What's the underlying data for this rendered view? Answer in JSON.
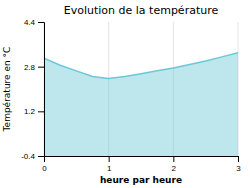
{
  "chart_data": {
    "type": "area",
    "title": "Evolution de la température",
    "xlabel": "heure par heure",
    "ylabel": "Température en °C",
    "x": [
      0,
      0.25,
      0.5,
      0.75,
      1.0,
      1.25,
      1.5,
      1.75,
      2.0,
      2.25,
      2.5,
      2.75,
      3.0
    ],
    "values": [
      3.1,
      2.85,
      2.65,
      2.45,
      2.38,
      2.45,
      2.55,
      2.65,
      2.75,
      2.88,
      3.0,
      3.15,
      3.3
    ],
    "color": "#6cc8d8",
    "xlim": [
      0,
      3
    ],
    "ylim": [
      -0.4,
      4.4
    ],
    "xticks": [
      0,
      1,
      2,
      3
    ],
    "yticks": [
      -0.4,
      1.2,
      2.8,
      4.4
    ],
    "grid": "x"
  }
}
